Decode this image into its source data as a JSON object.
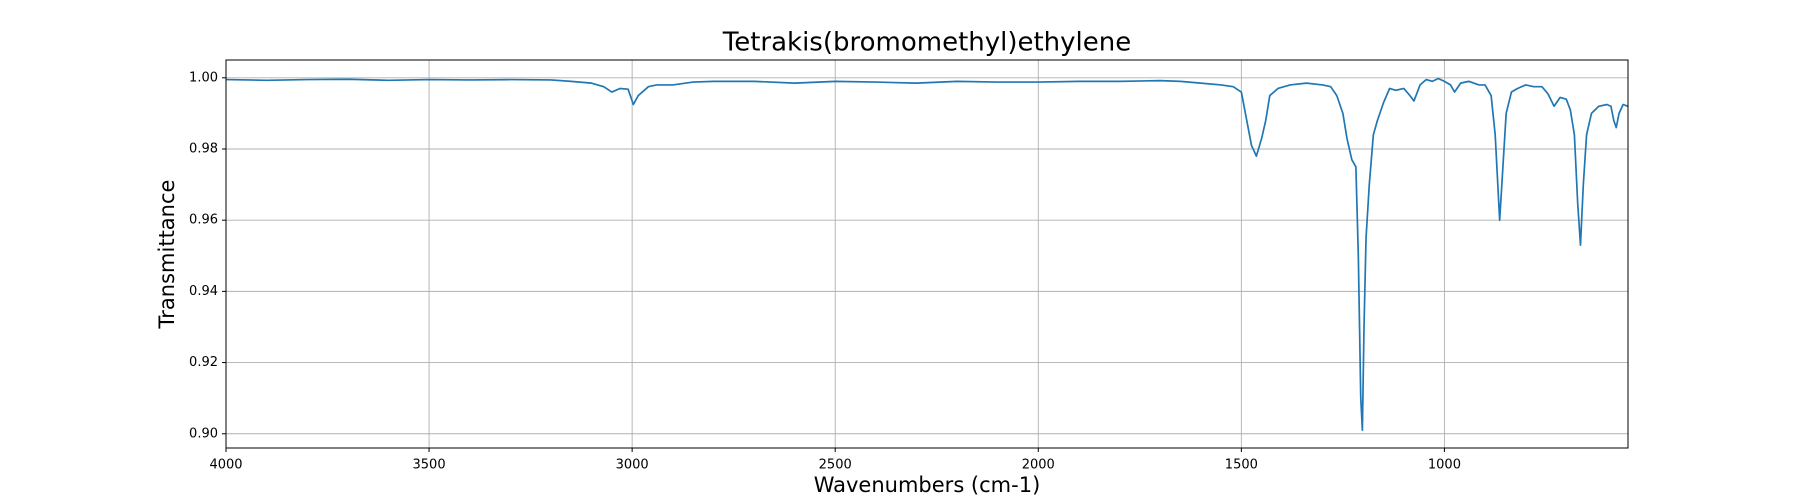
{
  "chart_data": {
    "type": "line",
    "title": "Tetrakis(bromomethyl)ethylene",
    "xlabel": "Wavenumbers (cm-1)",
    "ylabel": "Transmittance",
    "color": "#1f77b4",
    "grid": true,
    "xlim": [
      4000,
      548
    ],
    "ylim": [
      0.896,
      1.005
    ],
    "xticks": [
      4000,
      3500,
      3000,
      2500,
      2000,
      1500,
      1000
    ],
    "yticks": [
      {
        "value": 0.9,
        "label": "0.90"
      },
      0.92,
      0.94,
      0.96,
      0.98,
      {
        "value": 1,
        "label": "1.00"
      }
    ],
    "x": [
      4000,
      3900,
      3800,
      3700,
      3600,
      3500,
      3400,
      3300,
      3200,
      3150,
      3100,
      3070,
      3050,
      3030,
      3010,
      2997,
      2985,
      2960,
      2940,
      2900,
      2850,
      2800,
      2700,
      2600,
      2500,
      2400,
      2300,
      2200,
      2100,
      2000,
      1900,
      1800,
      1700,
      1650,
      1600,
      1550,
      1520,
      1500,
      1490,
      1475,
      1463,
      1450,
      1440,
      1430,
      1410,
      1380,
      1340,
      1300,
      1280,
      1265,
      1250,
      1240,
      1228,
      1218,
      1212,
      1206,
      1202,
      1198,
      1193,
      1185,
      1175,
      1165,
      1150,
      1135,
      1120,
      1100,
      1085,
      1075,
      1060,
      1045,
      1030,
      1015,
      1000,
      985,
      975,
      960,
      940,
      915,
      900,
      885,
      875,
      864,
      856,
      848,
      835,
      820,
      800,
      780,
      760,
      745,
      730,
      715,
      700,
      690,
      680,
      672,
      665,
      658,
      650,
      638,
      620,
      600,
      590,
      583,
      577,
      570,
      560,
      548
    ],
    "values": [
      0.9995,
      0.9993,
      0.9995,
      0.9996,
      0.9993,
      0.9995,
      0.9994,
      0.9995,
      0.9994,
      0.999,
      0.9985,
      0.9975,
      0.996,
      0.997,
      0.9968,
      0.9925,
      0.995,
      0.9975,
      0.998,
      0.998,
      0.9988,
      0.999,
      0.999,
      0.9985,
      0.999,
      0.9988,
      0.9985,
      0.999,
      0.9988,
      0.9988,
      0.999,
      0.999,
      0.9992,
      0.999,
      0.9985,
      0.998,
      0.9975,
      0.996,
      0.99,
      0.981,
      0.978,
      0.983,
      0.988,
      0.995,
      0.997,
      0.998,
      0.9985,
      0.998,
      0.9975,
      0.995,
      0.99,
      0.983,
      0.977,
      0.975,
      0.95,
      0.91,
      0.901,
      0.93,
      0.955,
      0.97,
      0.984,
      0.988,
      0.993,
      0.997,
      0.9965,
      0.997,
      0.995,
      0.9935,
      0.998,
      0.9995,
      0.999,
      0.9998,
      0.999,
      0.998,
      0.996,
      0.9985,
      0.999,
      0.998,
      0.998,
      0.995,
      0.984,
      0.96,
      0.975,
      0.99,
      0.996,
      0.997,
      0.998,
      0.9975,
      0.9975,
      0.9955,
      0.992,
      0.9945,
      0.994,
      0.991,
      0.984,
      0.965,
      0.953,
      0.97,
      0.984,
      0.99,
      0.992,
      0.9925,
      0.992,
      0.988,
      0.986,
      0.99,
      0.9925,
      0.992
    ]
  }
}
